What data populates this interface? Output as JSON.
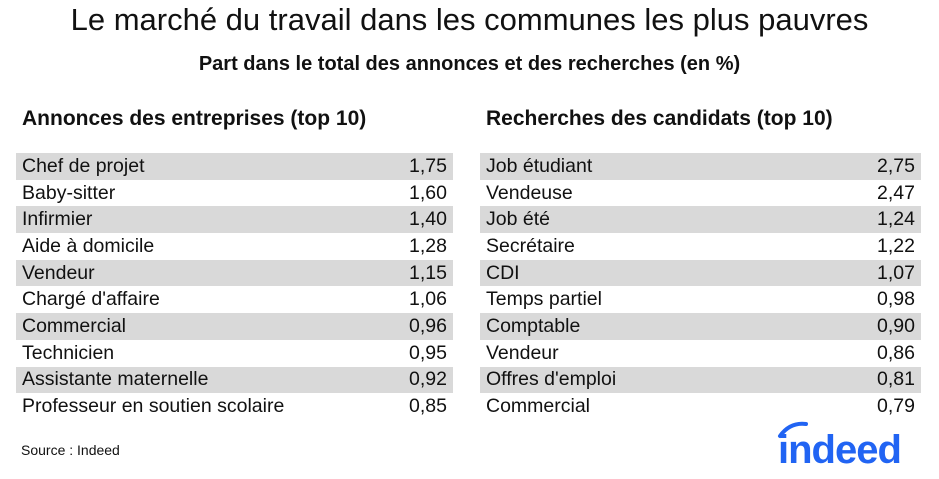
{
  "title": "Le marché du travail dans les communes les plus pauvres",
  "subtitle": "Part dans le total des annonces et des recherches (en %)",
  "source": "Source : Indeed",
  "logo_text": "indeed",
  "colors": {
    "row_shade": "#d9d9d9",
    "logo": "#2164f3"
  },
  "chart_data": [
    {
      "type": "table",
      "title": "Annonces des entreprises (top 10)",
      "categories": [
        "Chef de projet",
        "Baby-sitter",
        "Infirmier",
        "Aide à domicile",
        "Vendeur",
        "Chargé d'affaire",
        "Commercial",
        "Technicien",
        "Assistante maternelle",
        "Professeur en soutien scolaire"
      ],
      "values": [
        "1,75",
        "1,60",
        "1,40",
        "1,28",
        "1,15",
        "1,06",
        "0,96",
        "0,95",
        "0,92",
        "0,85"
      ]
    },
    {
      "type": "table",
      "title": "Recherches des candidats (top 10)",
      "categories": [
        "Job étudiant",
        "Vendeuse",
        "Job été",
        "Secrétaire",
        "CDI",
        "Temps partiel",
        "Comptable",
        "Vendeur",
        "Offres d'emploi",
        "Commercial"
      ],
      "values": [
        "2,75",
        "2,47",
        "1,24",
        "1,22",
        "1,07",
        "0,98",
        "0,90",
        "0,86",
        "0,81",
        "0,79"
      ]
    }
  ]
}
